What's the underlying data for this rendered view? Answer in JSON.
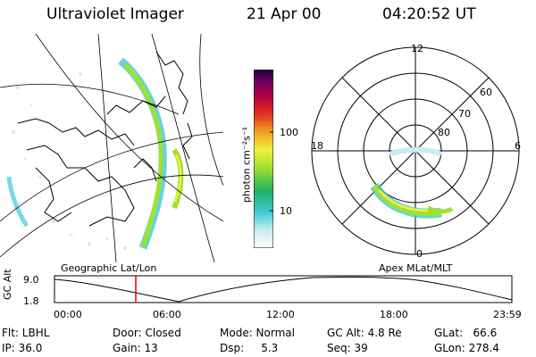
{
  "header": {
    "instrument": "Ultraviolet Imager",
    "date": "21 Apr 00",
    "time": "04:20:52 UT"
  },
  "colorbar": {
    "unit_label": "photon cm⁻²s⁻¹",
    "ticks": [
      "100",
      "10"
    ],
    "colors": [
      "#ffffff",
      "#c8ecf2",
      "#40c8d8",
      "#20b060",
      "#a0e030",
      "#f0f040",
      "#f0a020",
      "#e03020",
      "#b00040",
      "#700060",
      "#200040"
    ]
  },
  "left_panel": {
    "caption": "Geographic Lat/Lon"
  },
  "right_panel": {
    "caption": "Apex MLat/MLT",
    "mlt_labels": [
      "12",
      "18",
      "6",
      "0"
    ],
    "lat_labels": [
      "60",
      "70",
      "80"
    ]
  },
  "orbit_plot": {
    "ylabel": "GC Alt",
    "y_ticks": [
      "9.0",
      "1.8"
    ],
    "x_ticks": [
      "00:00",
      "06:00",
      "12:00",
      "18:00",
      "23:59"
    ],
    "marker_color": "#e00000"
  },
  "info": {
    "filter": "Flt: LBHL",
    "ip": "IP: 36.0",
    "door": "Door: Closed",
    "gain": "Gain: 13",
    "mode": "Mode: Normal",
    "dsp": "Dsp:     5.3",
    "gc_alt": "GC Alt: 4.8 Re",
    "seq": "Seq: 39",
    "glat": "GLat:   66.6",
    "glon": "GLon: 278.4"
  }
}
